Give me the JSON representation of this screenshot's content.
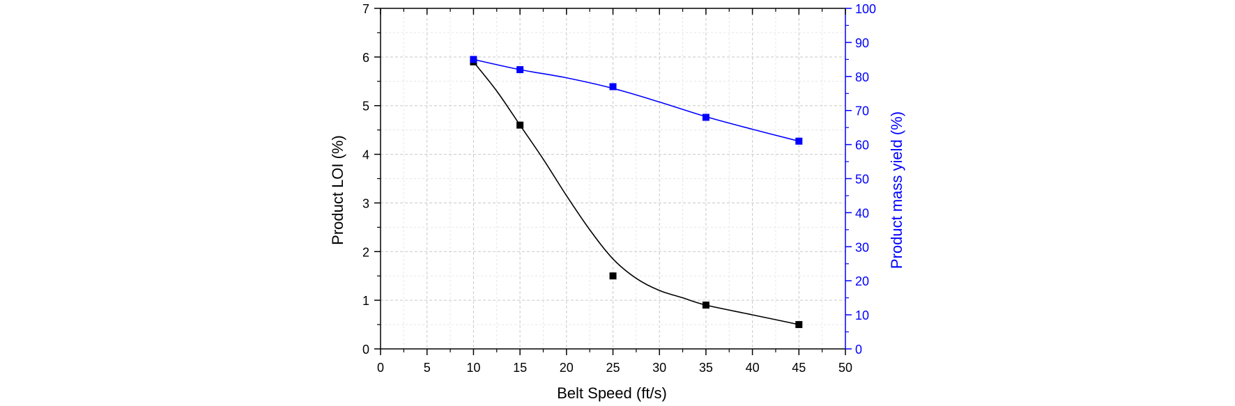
{
  "chart_data": {
    "type": "line",
    "title": "",
    "xlabel": "Belt Speed (ft/s)",
    "ylabel": "Product LOI (%)",
    "y2label": "Product mass yield (%)",
    "xlim": [
      0,
      50
    ],
    "ylim": [
      0,
      7
    ],
    "y2lim": [
      0,
      100
    ],
    "x_ticks": [
      0,
      5,
      10,
      15,
      20,
      25,
      30,
      35,
      40,
      45,
      50
    ],
    "y_ticks": [
      0,
      1,
      2,
      3,
      4,
      5,
      6,
      7
    ],
    "y2_ticks": [
      0,
      10,
      20,
      30,
      40,
      50,
      60,
      70,
      80,
      90,
      100
    ],
    "grid": true,
    "series": [
      {
        "name": "Product LOI",
        "axis": "left",
        "color": "#000000",
        "marker": "square",
        "x": [
          10,
          15,
          25,
          35,
          45
        ],
        "values": [
          5.9,
          4.6,
          1.5,
          0.9,
          0.5
        ],
        "fit_curve": {
          "x": [
            10,
            12.5,
            15,
            17.5,
            20,
            22.5,
            25,
            27.5,
            30,
            32.5,
            35,
            40,
            45
          ],
          "values": [
            5.9,
            5.3,
            4.6,
            3.9,
            3.15,
            2.45,
            1.85,
            1.45,
            1.2,
            1.05,
            0.9,
            0.7,
            0.5
          ]
        }
      },
      {
        "name": "Product mass yield",
        "axis": "right",
        "color": "#0000ff",
        "marker": "square",
        "x": [
          10,
          15,
          25,
          35,
          45
        ],
        "values": [
          85,
          82,
          77,
          68,
          61
        ],
        "fit_curve": {
          "x": [
            10,
            15,
            20,
            25,
            30,
            35,
            40,
            45
          ],
          "values": [
            85,
            82,
            79.6,
            76.5,
            72.5,
            68.2,
            64.5,
            61
          ]
        }
      }
    ]
  }
}
